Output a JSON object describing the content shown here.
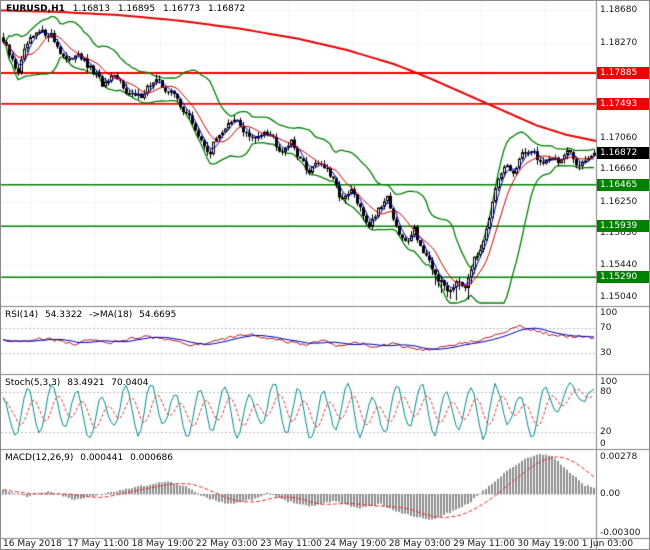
{
  "header": {
    "symbol": "EURUSD,H1",
    "open": "1.16813",
    "high": "1.16895",
    "low": "1.16773",
    "close": "1.16872"
  },
  "colors": {
    "up_candle": "#FFFFFF",
    "down_candle": "#000000",
    "wick": "#000000",
    "bands": "#008000",
    "long_ma": "#E60000",
    "ma_fast": "#0000CC",
    "ma_slow": "#CC0000",
    "resistance": "#FF0000",
    "support": "#008000",
    "current_price_bg": "#000000",
    "label_red_bg": "#F00000",
    "label_green_bg": "#008000",
    "rsi_main": "#B22222",
    "rsi_ma": "#0000CC",
    "stoch_main": "#008B8B",
    "stoch_signal": "#DC3232",
    "macd_hist": "#8F8F8F",
    "macd_signal": "#DC3232",
    "grid": "#E4E4E4",
    "level_dotted": "#B9B9CE",
    "panel_border": "#808080"
  },
  "chart_data": {
    "type": "candlestick",
    "symbol": "EURUSD",
    "timeframe": "H1",
    "x_labels": [
      "16 May 2018",
      "17 May 11:00",
      "18 May 19:00",
      "22 May 03:00",
      "23 May 11:00",
      "24 May 19:00",
      "28 May 03:00",
      "29 May 11:00",
      "30 May 19:00",
      "1 Jun 03:00"
    ],
    "price_axis": {
      "min": 1.1495,
      "max": 1.188,
      "ticks": [
        "1.18680",
        "1.18270",
        "1.17060",
        "1.16660",
        "1.16250",
        "1.15850",
        "1.15440",
        "1.15040"
      ]
    },
    "levels": {
      "resistance": [
        {
          "price": "1.17885"
        },
        {
          "price": "1.17493"
        }
      ],
      "support": [
        {
          "price": "1.16465"
        },
        {
          "price": "1.15939"
        },
        {
          "price": "1.15290"
        }
      ],
      "current": {
        "price": "1.16872"
      }
    },
    "close_waypoints": [
      [
        0.0,
        1.1828
      ],
      [
        0.012,
        1.1808
      ],
      [
        0.025,
        1.179
      ],
      [
        0.04,
        1.1825
      ],
      [
        0.06,
        1.184
      ],
      [
        0.08,
        1.1838
      ],
      [
        0.095,
        1.1818
      ],
      [
        0.11,
        1.18
      ],
      [
        0.125,
        1.1818
      ],
      [
        0.14,
        1.1798
      ],
      [
        0.155,
        1.1788
      ],
      [
        0.17,
        1.1772
      ],
      [
        0.185,
        1.1782
      ],
      [
        0.2,
        1.1776
      ],
      [
        0.215,
        1.176
      ],
      [
        0.23,
        1.1758
      ],
      [
        0.245,
        1.1772
      ],
      [
        0.26,
        1.1778
      ],
      [
        0.275,
        1.1768
      ],
      [
        0.29,
        1.176
      ],
      [
        0.305,
        1.1742
      ],
      [
        0.32,
        1.1725
      ],
      [
        0.335,
        1.17
      ],
      [
        0.35,
        1.1688
      ],
      [
        0.365,
        1.1712
      ],
      [
        0.38,
        1.1722
      ],
      [
        0.395,
        1.1728
      ],
      [
        0.41,
        1.1712
      ],
      [
        0.425,
        1.1702
      ],
      [
        0.44,
        1.1718
      ],
      [
        0.455,
        1.1708
      ],
      [
        0.47,
        1.169
      ],
      [
        0.485,
        1.1702
      ],
      [
        0.5,
        1.1684
      ],
      [
        0.515,
        1.1662
      ],
      [
        0.53,
        1.1678
      ],
      [
        0.545,
        1.1668
      ],
      [
        0.56,
        1.1648
      ],
      [
        0.575,
        1.1625
      ],
      [
        0.59,
        1.164
      ],
      [
        0.605,
        1.1612
      ],
      [
        0.62,
        1.1595
      ],
      [
        0.635,
        1.1618
      ],
      [
        0.65,
        1.1632
      ],
      [
        0.665,
        1.159
      ],
      [
        0.68,
        1.1572
      ],
      [
        0.695,
        1.1592
      ],
      [
        0.71,
        1.156
      ],
      [
        0.725,
        1.154
      ],
      [
        0.74,
        1.1522
      ],
      [
        0.755,
        1.1512
      ],
      [
        0.77,
        1.153
      ],
      [
        0.78,
        1.1515
      ],
      [
        0.79,
        1.154
      ],
      [
        0.805,
        1.1562
      ],
      [
        0.82,
        1.16
      ],
      [
        0.835,
        1.1645
      ],
      [
        0.85,
        1.1672
      ],
      [
        0.862,
        1.166
      ],
      [
        0.875,
        1.168
      ],
      [
        0.888,
        1.1692
      ],
      [
        0.9,
        1.1685
      ],
      [
        0.912,
        1.1672
      ],
      [
        0.925,
        1.1684
      ],
      [
        0.94,
        1.1676
      ],
      [
        0.955,
        1.1688
      ],
      [
        0.97,
        1.1672
      ],
      [
        0.985,
        1.168
      ],
      [
        1.0,
        1.16872
      ]
    ],
    "red_ma_waypoints": [
      [
        0.0,
        1.1868
      ],
      [
        0.1,
        1.1866
      ],
      [
        0.2,
        1.1862
      ],
      [
        0.3,
        1.1855
      ],
      [
        0.4,
        1.1845
      ],
      [
        0.5,
        1.1832
      ],
      [
        0.58,
        1.1818
      ],
      [
        0.66,
        1.18
      ],
      [
        0.72,
        1.1782
      ],
      [
        0.78,
        1.1762
      ],
      [
        0.84,
        1.1742
      ],
      [
        0.9,
        1.1722
      ],
      [
        0.95,
        1.171
      ],
      [
        1.0,
        1.1702
      ]
    ],
    "indicators": {
      "rsi": {
        "label": "RSI(14)",
        "value": "54.3322",
        "ma_label": "->MA(18)",
        "ma_value": "54.6695",
        "levels": [
          30,
          70
        ],
        "axis_ticks": [
          "100",
          "70",
          "30"
        ],
        "waypoints": [
          [
            0,
            52
          ],
          [
            0.03,
            47
          ],
          [
            0.06,
            54
          ],
          [
            0.09,
            50
          ],
          [
            0.12,
            44
          ],
          [
            0.15,
            52
          ],
          [
            0.18,
            46
          ],
          [
            0.21,
            52
          ],
          [
            0.24,
            57
          ],
          [
            0.27,
            53
          ],
          [
            0.3,
            46
          ],
          [
            0.33,
            42
          ],
          [
            0.36,
            50
          ],
          [
            0.39,
            57
          ],
          [
            0.42,
            60
          ],
          [
            0.45,
            53
          ],
          [
            0.48,
            48
          ],
          [
            0.51,
            42
          ],
          [
            0.54,
            50
          ],
          [
            0.57,
            40
          ],
          [
            0.6,
            47
          ],
          [
            0.63,
            38
          ],
          [
            0.66,
            46
          ],
          [
            0.69,
            36
          ],
          [
            0.72,
            33
          ],
          [
            0.75,
            40
          ],
          [
            0.78,
            46
          ],
          [
            0.81,
            52
          ],
          [
            0.84,
            62
          ],
          [
            0.87,
            73
          ],
          [
            0.9,
            67
          ],
          [
            0.93,
            58
          ],
          [
            0.96,
            56
          ],
          [
            0.98,
            57
          ],
          [
            1.0,
            54.33
          ]
        ]
      },
      "stoch": {
        "label": "Stoch(5,3,3)",
        "value": "83.4921",
        "signal_value": "70.0404",
        "levels": [
          20,
          80
        ],
        "axis_ticks": [
          "100",
          "80",
          "20",
          "0"
        ],
        "waypoints": [
          70,
          15,
          85,
          20,
          90,
          25,
          80,
          10,
          72,
          28,
          88,
          15,
          92,
          30,
          78,
          12,
          85,
          22,
          90,
          14,
          76,
          30,
          94,
          18,
          85,
          10,
          80,
          26,
          90,
          15,
          70,
          20,
          88,
          28,
          92,
          16,
          80,
          24,
          86,
          12,
          90,
          32,
          75,
          14,
          85,
          50,
          92,
          65,
          83
        ]
      },
      "macd": {
        "label": "MACD(12,26,9)",
        "value": "0.000441",
        "signal_value": "0.000686",
        "range": [
          -0.003,
          0.003
        ],
        "axis_ticks": [
          "0.00278",
          "0.00",
          "-0.00300"
        ],
        "waypoints": [
          [
            0,
            0.0003
          ],
          [
            0.04,
            -0.0002
          ],
          [
            0.08,
            0.0002
          ],
          [
            0.12,
            -0.0004
          ],
          [
            0.16,
            -0.0001
          ],
          [
            0.2,
            0.0003
          ],
          [
            0.24,
            0.0006
          ],
          [
            0.28,
            0.0009
          ],
          [
            0.31,
            0.0005
          ],
          [
            0.34,
            -0.0002
          ],
          [
            0.38,
            -0.0007
          ],
          [
            0.42,
            -0.0004
          ],
          [
            0.45,
            0.0001
          ],
          [
            0.48,
            -0.0005
          ],
          [
            0.52,
            -0.0009
          ],
          [
            0.56,
            -0.0005
          ],
          [
            0.6,
            -0.001
          ],
          [
            0.64,
            -0.0007
          ],
          [
            0.67,
            -0.0013
          ],
          [
            0.7,
            -0.0016
          ],
          [
            0.73,
            -0.0018
          ],
          [
            0.76,
            -0.0012
          ],
          [
            0.79,
            -0.0006
          ],
          [
            0.82,
            0.0005
          ],
          [
            0.85,
            0.0015
          ],
          [
            0.88,
            0.0024
          ],
          [
            0.905,
            0.0028
          ],
          [
            0.93,
            0.0026
          ],
          [
            0.95,
            0.0019
          ],
          [
            0.97,
            0.0011
          ],
          [
            0.985,
            0.0006
          ],
          [
            1.0,
            0.00044
          ]
        ]
      }
    }
  }
}
